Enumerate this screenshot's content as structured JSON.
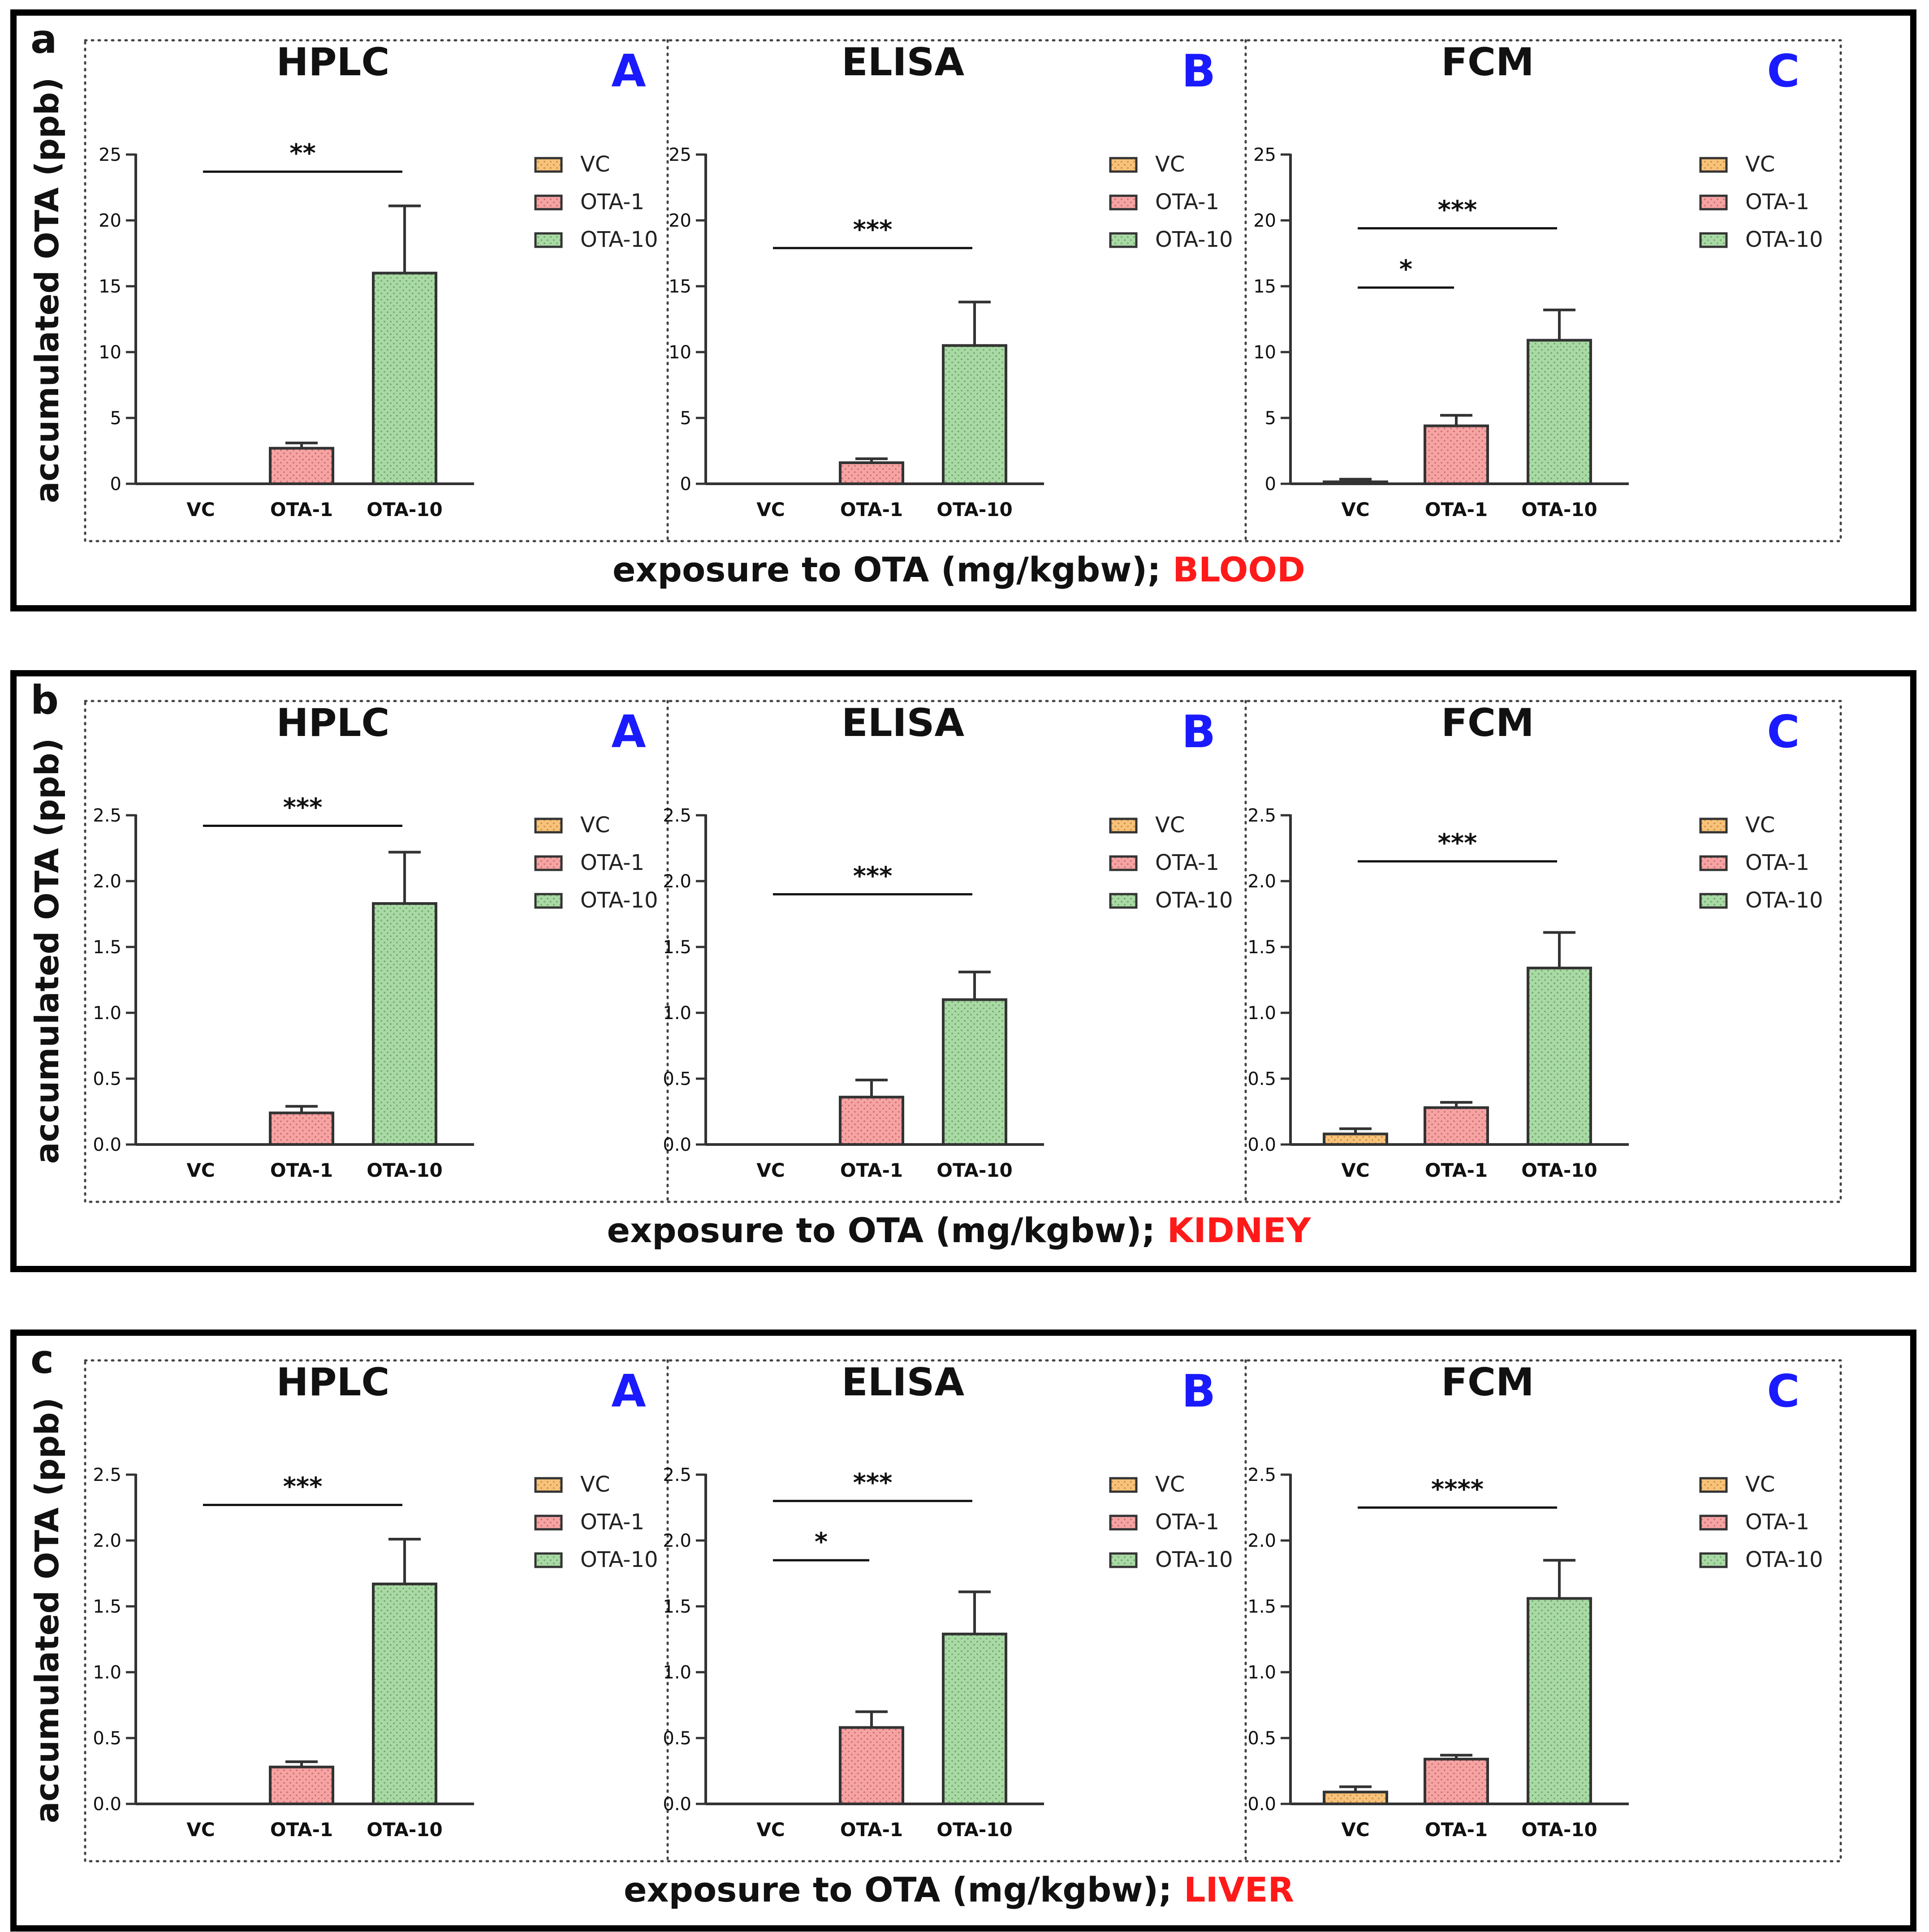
{
  "colors": {
    "VC": "#f7c27a",
    "OTA-1": "#f6a3a3",
    "OTA-10": "#a9d9a4",
    "organ": "#ff1a1a",
    "letter": "#1a1aff"
  },
  "y_label": "accumulated OTA (ppb)",
  "x_label_prefix": "exposure to OTA (mg/kgbw); ",
  "legend": [
    "VC",
    "OTA-1",
    "OTA-10"
  ],
  "chart_data": [
    {
      "panel": "a",
      "organ": "BLOOD",
      "ylim": [
        0,
        25
      ],
      "yticks": [
        0,
        5,
        10,
        15,
        20,
        25
      ],
      "tick_labels": [
        "0",
        "5",
        "10",
        "15",
        "20",
        "25"
      ],
      "charts": [
        {
          "type": "bar",
          "title": "HPLC",
          "letter": "A",
          "categories": [
            "VC",
            "OTA-1",
            "OTA-10"
          ],
          "values": [
            0,
            2.7,
            16.0
          ],
          "errors": [
            0,
            0.4,
            5.1
          ],
          "significance": [
            {
              "from": 0,
              "to": 2,
              "y": 23.7,
              "label": "**"
            }
          ]
        },
        {
          "type": "bar",
          "title": "ELISA",
          "letter": "B",
          "categories": [
            "VC",
            "OTA-1",
            "OTA-10"
          ],
          "values": [
            0,
            1.6,
            10.5
          ],
          "errors": [
            0,
            0.3,
            3.3
          ],
          "significance": [
            {
              "from": 0,
              "to": 2,
              "y": 17.9,
              "label": "***"
            }
          ]
        },
        {
          "type": "bar",
          "title": "FCM",
          "letter": "C",
          "categories": [
            "VC",
            "OTA-1",
            "OTA-10"
          ],
          "values": [
            0.15,
            4.4,
            10.9
          ],
          "errors": [
            0.2,
            0.8,
            2.3
          ],
          "significance": [
            {
              "from": 0,
              "to": 2,
              "y": 19.4,
              "label": "***"
            },
            {
              "from": 0,
              "to": 1,
              "y": 14.9,
              "label": "*"
            }
          ]
        }
      ]
    },
    {
      "panel": "b",
      "organ": "KIDNEY",
      "ylim": [
        0,
        2.5
      ],
      "yticks": [
        0,
        0.5,
        1,
        1.5,
        2,
        2.5
      ],
      "tick_labels": [
        "0.0",
        "0.5",
        "1.0",
        "1.5",
        "2.0",
        "2.5"
      ],
      "charts": [
        {
          "type": "bar",
          "title": "HPLC",
          "letter": "A",
          "categories": [
            "VC",
            "OTA-1",
            "OTA-10"
          ],
          "values": [
            0,
            0.24,
            1.83
          ],
          "errors": [
            0,
            0.05,
            0.39
          ],
          "significance": [
            {
              "from": 0,
              "to": 2,
              "y": 2.42,
              "label": "***"
            }
          ]
        },
        {
          "type": "bar",
          "title": "ELISA",
          "letter": "B",
          "categories": [
            "VC",
            "OTA-1",
            "OTA-10"
          ],
          "values": [
            0,
            0.36,
            1.1
          ],
          "errors": [
            0,
            0.13,
            0.21
          ],
          "significance": [
            {
              "from": 0,
              "to": 2,
              "y": 1.9,
              "label": "***"
            }
          ]
        },
        {
          "type": "bar",
          "title": "FCM",
          "letter": "C",
          "categories": [
            "VC",
            "OTA-1",
            "OTA-10"
          ],
          "values": [
            0.08,
            0.28,
            1.34
          ],
          "errors": [
            0.04,
            0.04,
            0.27
          ],
          "significance": [
            {
              "from": 0,
              "to": 2,
              "y": 2.15,
              "label": "***"
            }
          ]
        }
      ]
    },
    {
      "panel": "c",
      "organ": "LIVER",
      "ylim": [
        0,
        2.5
      ],
      "yticks": [
        0,
        0.5,
        1,
        1.5,
        2,
        2.5
      ],
      "tick_labels": [
        "0.0",
        "0.5",
        "1.0",
        "1.5",
        "2.0",
        "2.5"
      ],
      "charts": [
        {
          "type": "bar",
          "title": "HPLC",
          "letter": "A",
          "categories": [
            "VC",
            "OTA-1",
            "OTA-10"
          ],
          "values": [
            0,
            0.28,
            1.67
          ],
          "errors": [
            0,
            0.04,
            0.34
          ],
          "significance": [
            {
              "from": 0,
              "to": 2,
              "y": 2.27,
              "label": "***"
            }
          ]
        },
        {
          "type": "bar",
          "title": "ELISA",
          "letter": "B",
          "categories": [
            "VC",
            "OTA-1",
            "OTA-10"
          ],
          "values": [
            0,
            0.58,
            1.29
          ],
          "errors": [
            0,
            0.12,
            0.32
          ],
          "significance": [
            {
              "from": 0,
              "to": 2,
              "y": 2.3,
              "label": "***"
            },
            {
              "from": 0,
              "to": 1,
              "y": 1.85,
              "label": "*"
            }
          ]
        },
        {
          "type": "bar",
          "title": "FCM",
          "letter": "C",
          "categories": [
            "VC",
            "OTA-1",
            "OTA-10"
          ],
          "values": [
            0.09,
            0.34,
            1.56
          ],
          "errors": [
            0.04,
            0.03,
            0.29
          ],
          "significance": [
            {
              "from": 0,
              "to": 2,
              "y": 2.25,
              "label": "****"
            }
          ]
        }
      ]
    }
  ]
}
